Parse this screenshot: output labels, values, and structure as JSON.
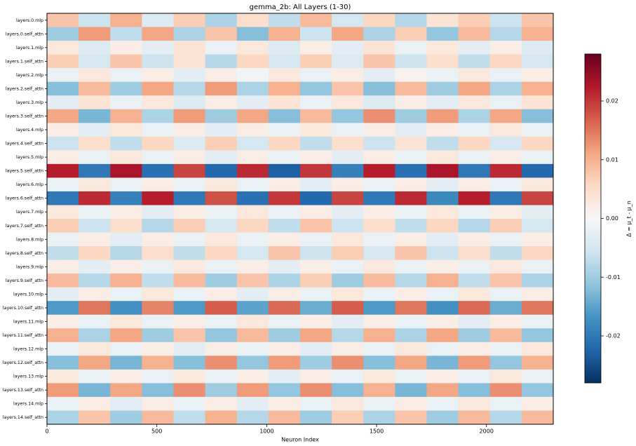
{
  "chart_data": {
    "type": "heatmap",
    "title": "gemma_2b: All Layers (1-30)",
    "x_label": "Neuron Index",
    "colorbar_label": "Δ = μ_t - μ_n",
    "categories": [
      "layers.0.mlp",
      "layers.0.self_attn",
      "layers.1.mlp",
      "layers.1.self_attn",
      "layers.2.mlp",
      "layers.2.self_attn",
      "layers.3.mlp",
      "layers.3.self_attn",
      "layers.4.mlp",
      "layers.4.self_attn",
      "layers.5.mlp",
      "layers.5.self_attn",
      "layers.6.mlp",
      "layers.6.self_attn",
      "layers.7.mlp",
      "layers.7.self_attn",
      "layers.8.mlp",
      "layers.8.self_attn",
      "layers.9.mlp",
      "layers.9.self_attn",
      "layers.10.mlp",
      "layers.10.self_attn",
      "layers.11.mlp",
      "layers.11.self_attn",
      "layers.12.mlp",
      "layers.12.self_attn",
      "layers.13.mlp",
      "layers.13.self_attn",
      "layers.14.mlp",
      "layers.14.self_attn"
    ],
    "bins": [
      0,
      144,
      288,
      432,
      576,
      720,
      864,
      1008,
      1152,
      1296,
      1440,
      1584,
      1728,
      1872,
      2016,
      2160,
      2304
    ],
    "values": [
      [
        0.008,
        -0.006,
        0.01,
        -0.004,
        0.007,
        -0.009,
        0.005,
        -0.007,
        0.009,
        -0.005,
        0.006,
        -0.008,
        0.004,
        0.007,
        -0.006,
        0.008
      ],
      [
        -0.01,
        0.012,
        -0.007,
        0.011,
        -0.009,
        0.008,
        -0.012,
        0.01,
        -0.006,
        0.011,
        -0.009,
        0.007,
        -0.011,
        0.009,
        -0.008,
        0.01
      ],
      [
        0.003,
        -0.004,
        0.002,
        -0.003,
        0.004,
        -0.002,
        0.003,
        -0.004,
        0.002,
        -0.003,
        0.004,
        -0.002,
        0.003,
        -0.003,
        0.002,
        -0.004
      ],
      [
        0.007,
        -0.005,
        0.008,
        -0.006,
        0.004,
        -0.008,
        0.006,
        -0.005,
        0.007,
        -0.004,
        0.008,
        -0.006,
        0.005,
        -0.007,
        0.006,
        -0.005
      ],
      [
        -0.002,
        0.003,
        -0.002,
        0.002,
        -0.003,
        0.002,
        -0.001,
        0.003,
        -0.002,
        0.002,
        -0.003,
        0.001,
        -0.002,
        0.003,
        -0.002,
        0.002
      ],
      [
        -0.012,
        0.009,
        -0.01,
        0.011,
        -0.008,
        0.012,
        -0.009,
        0.01,
        -0.011,
        0.008,
        -0.012,
        0.009,
        -0.01,
        0.011,
        -0.009,
        0.01
      ],
      [
        -0.003,
        0.004,
        -0.002,
        0.003,
        -0.004,
        0.002,
        -0.003,
        0.004,
        -0.002,
        0.003,
        -0.004,
        0.002,
        -0.003,
        0.003,
        -0.002,
        0.004
      ],
      [
        0.011,
        -0.013,
        0.01,
        -0.009,
        0.012,
        -0.01,
        0.011,
        -0.012,
        0.009,
        -0.011,
        0.013,
        -0.01,
        0.012,
        -0.009,
        0.011,
        -0.012
      ],
      [
        0.002,
        -0.003,
        0.003,
        -0.002,
        0.002,
        -0.003,
        0.002,
        -0.002,
        0.003,
        -0.002,
        0.002,
        -0.003,
        0.002,
        -0.002,
        0.003,
        -0.002
      ],
      [
        -0.006,
        0.005,
        -0.007,
        0.006,
        -0.004,
        0.007,
        -0.005,
        0.006,
        -0.007,
        0.005,
        -0.006,
        0.004,
        -0.007,
        0.006,
        -0.005,
        0.006
      ],
      [
        0.002,
        -0.002,
        0.003,
        -0.002,
        0.002,
        -0.003,
        0.002,
        -0.002,
        0.002,
        -0.003,
        0.002,
        -0.002,
        0.003,
        -0.002,
        0.002,
        -0.002
      ],
      [
        0.022,
        -0.02,
        0.023,
        -0.021,
        0.019,
        -0.022,
        0.021,
        -0.023,
        0.02,
        -0.019,
        0.022,
        -0.021,
        0.023,
        -0.02,
        0.021,
        -0.022
      ],
      [
        -0.002,
        0.003,
        -0.002,
        0.002,
        -0.002,
        0.003,
        -0.002,
        0.002,
        -0.003,
        0.002,
        -0.002,
        0.002,
        -0.003,
        0.002,
        -0.002,
        0.003
      ],
      [
        -0.02,
        0.021,
        -0.019,
        0.022,
        -0.02,
        0.018,
        -0.021,
        0.02,
        -0.022,
        0.019,
        -0.02,
        0.021,
        -0.018,
        0.022,
        -0.02,
        0.019
      ],
      [
        0.003,
        -0.002,
        0.002,
        -0.003,
        0.002,
        -0.002,
        0.003,
        -0.002,
        0.002,
        -0.003,
        0.002,
        -0.002,
        0.003,
        -0.002,
        0.002,
        -0.003
      ],
      [
        0.007,
        -0.006,
        0.005,
        -0.008,
        0.007,
        -0.005,
        0.006,
        -0.007,
        0.008,
        -0.006,
        0.005,
        -0.007,
        0.006,
        -0.008,
        0.007,
        -0.005
      ],
      [
        -0.002,
        0.002,
        -0.003,
        0.002,
        -0.002,
        0.003,
        -0.002,
        0.002,
        -0.002,
        0.003,
        -0.002,
        0.002,
        -0.003,
        0.002,
        -0.002,
        0.002
      ],
      [
        -0.007,
        0.006,
        -0.008,
        0.005,
        -0.007,
        0.006,
        -0.005,
        0.008,
        -0.006,
        0.007,
        -0.005,
        0.008,
        -0.006,
        0.005,
        -0.007,
        0.006
      ],
      [
        0.002,
        -0.003,
        0.002,
        -0.002,
        0.003,
        -0.002,
        0.002,
        -0.003,
        0.002,
        -0.002,
        0.003,
        -0.002,
        0.002,
        -0.002,
        0.003,
        -0.002
      ],
      [
        0.009,
        -0.008,
        0.01,
        -0.007,
        0.009,
        -0.01,
        0.008,
        -0.009,
        0.007,
        -0.01,
        0.009,
        -0.008,
        0.01,
        -0.007,
        0.008,
        -0.009
      ],
      [
        -0.003,
        0.002,
        -0.002,
        0.003,
        -0.002,
        0.002,
        -0.003,
        0.002,
        -0.002,
        0.003,
        -0.002,
        0.002,
        -0.002,
        0.003,
        -0.002,
        0.002
      ],
      [
        -0.016,
        0.015,
        -0.017,
        0.014,
        -0.016,
        0.017,
        -0.015,
        0.016,
        -0.014,
        0.017,
        -0.016,
        0.015,
        -0.017,
        0.016,
        -0.014,
        0.015
      ],
      [
        0.002,
        -0.002,
        0.003,
        -0.002,
        0.002,
        -0.002,
        0.003,
        -0.002,
        0.002,
        -0.003,
        0.002,
        -0.002,
        0.002,
        -0.003,
        0.002,
        -0.002
      ],
      [
        0.01,
        -0.009,
        0.011,
        -0.01,
        0.008,
        -0.011,
        0.009,
        -0.01,
        0.011,
        -0.008,
        0.01,
        -0.009,
        0.011,
        -0.01,
        0.009,
        -0.011
      ],
      [
        -0.002,
        0.003,
        -0.002,
        0.002,
        -0.003,
        0.002,
        -0.002,
        0.002,
        -0.003,
        0.002,
        -0.002,
        0.003,
        -0.002,
        0.002,
        -0.002,
        0.003
      ],
      [
        -0.012,
        0.011,
        -0.013,
        0.01,
        -0.012,
        0.013,
        -0.011,
        0.012,
        -0.01,
        0.013,
        -0.012,
        0.011,
        -0.013,
        0.012,
        -0.011,
        0.01
      ],
      [
        0.003,
        -0.002,
        0.002,
        -0.002,
        0.003,
        -0.002,
        0.002,
        -0.003,
        0.002,
        -0.002,
        0.003,
        -0.002,
        0.002,
        -0.002,
        0.003,
        -0.002
      ],
      [
        0.012,
        -0.013,
        0.011,
        -0.012,
        0.013,
        -0.01,
        0.012,
        -0.011,
        0.013,
        -0.012,
        0.01,
        -0.013,
        0.011,
        -0.012,
        0.013,
        -0.011
      ],
      [
        -0.002,
        0.002,
        -0.003,
        0.002,
        -0.002,
        0.002,
        -0.003,
        0.002,
        -0.002,
        0.003,
        -0.002,
        0.002,
        -0.002,
        0.003,
        -0.002,
        0.002
      ],
      [
        -0.009,
        0.008,
        -0.01,
        0.009,
        -0.007,
        0.01,
        -0.008,
        0.009,
        -0.01,
        0.007,
        -0.009,
        0.008,
        -0.01,
        0.009,
        -0.008,
        0.009
      ]
    ],
    "xlim": [
      0,
      2304
    ],
    "xticks": [
      0,
      500,
      1000,
      1500,
      2000
    ],
    "clim": [
      -0.028,
      0.028
    ],
    "cticks": [
      -0.02,
      -0.01,
      {
        "value": 0,
        "label": "0.00"
      },
      0.01,
      0.02
    ],
    "colormap": [
      "#053061",
      "#2166ac",
      "#4393c3",
      "#92c5de",
      "#d1e5f0",
      "#f7f7f7",
      "#fddbc7",
      "#f4a582",
      "#d6604d",
      "#b2182b",
      "#67001f"
    ]
  }
}
